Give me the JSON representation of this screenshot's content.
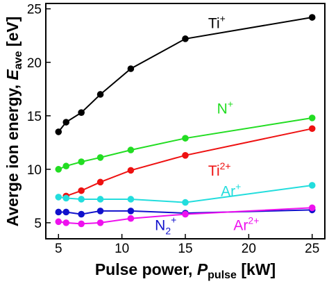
{
  "chart_data": {
    "type": "line",
    "xlabel": {
      "main": "Pulse power, ",
      "symbol": "P",
      "sub": "pulse",
      "unit": " [kW]"
    },
    "ylabel": {
      "main": "Averge ion energy, ",
      "symbol": "E",
      "sub": "ave",
      "unit": " [eV]"
    },
    "xlim": [
      4,
      26
    ],
    "ylim": [
      3.5,
      25.5
    ],
    "xticks": [
      5,
      10,
      15,
      20,
      25
    ],
    "yticks": [
      5,
      10,
      15,
      20,
      25
    ],
    "grid": false,
    "series": [
      {
        "name": "Ti",
        "sup": "+",
        "sub": "",
        "color": "#000000",
        "x": [
          5,
          5.6,
          6.8,
          8.3,
          10.7,
          15,
          25
        ],
        "y": [
          13.5,
          14.4,
          15.3,
          17.0,
          19.4,
          22.2,
          24.2
        ]
      },
      {
        "name": "N",
        "sup": "+",
        "sub": "",
        "color": "#22dd22",
        "x": [
          5,
          5.6,
          6.8,
          8.3,
          10.7,
          15,
          25
        ],
        "y": [
          10.0,
          10.3,
          10.7,
          11.1,
          11.8,
          12.9,
          14.8
        ]
      },
      {
        "name": "Ti",
        "sup": "2+",
        "sub": "",
        "color": "#ee1111",
        "x": [
          5.6,
          6.8,
          8.3,
          10.7,
          15,
          25
        ],
        "y": [
          7.5,
          8.0,
          8.8,
          9.9,
          11.3,
          13.8
        ]
      },
      {
        "name": "Ar",
        "sup": "+",
        "sub": "",
        "color": "#22dddd",
        "x": [
          5,
          5.6,
          6.8,
          8.3,
          10.7,
          15,
          25
        ],
        "y": [
          7.4,
          7.3,
          7.2,
          7.2,
          7.2,
          6.9,
          8.5
        ]
      },
      {
        "name": "N",
        "sup": "+",
        "sub": "2",
        "color": "#1111cc",
        "x": [
          5,
          5.6,
          6.8,
          8.3,
          10.7,
          15,
          25
        ],
        "y": [
          6.0,
          6.0,
          5.8,
          6.1,
          6.1,
          5.9,
          6.2
        ]
      },
      {
        "name": "Ar",
        "sup": "2+",
        "sub": "",
        "color": "#ee11ee",
        "x": [
          5,
          5.6,
          6.8,
          8.3,
          10.7,
          15,
          25
        ],
        "y": [
          5.1,
          5.0,
          4.9,
          5.0,
          5.4,
          5.8,
          6.4
        ]
      }
    ]
  }
}
